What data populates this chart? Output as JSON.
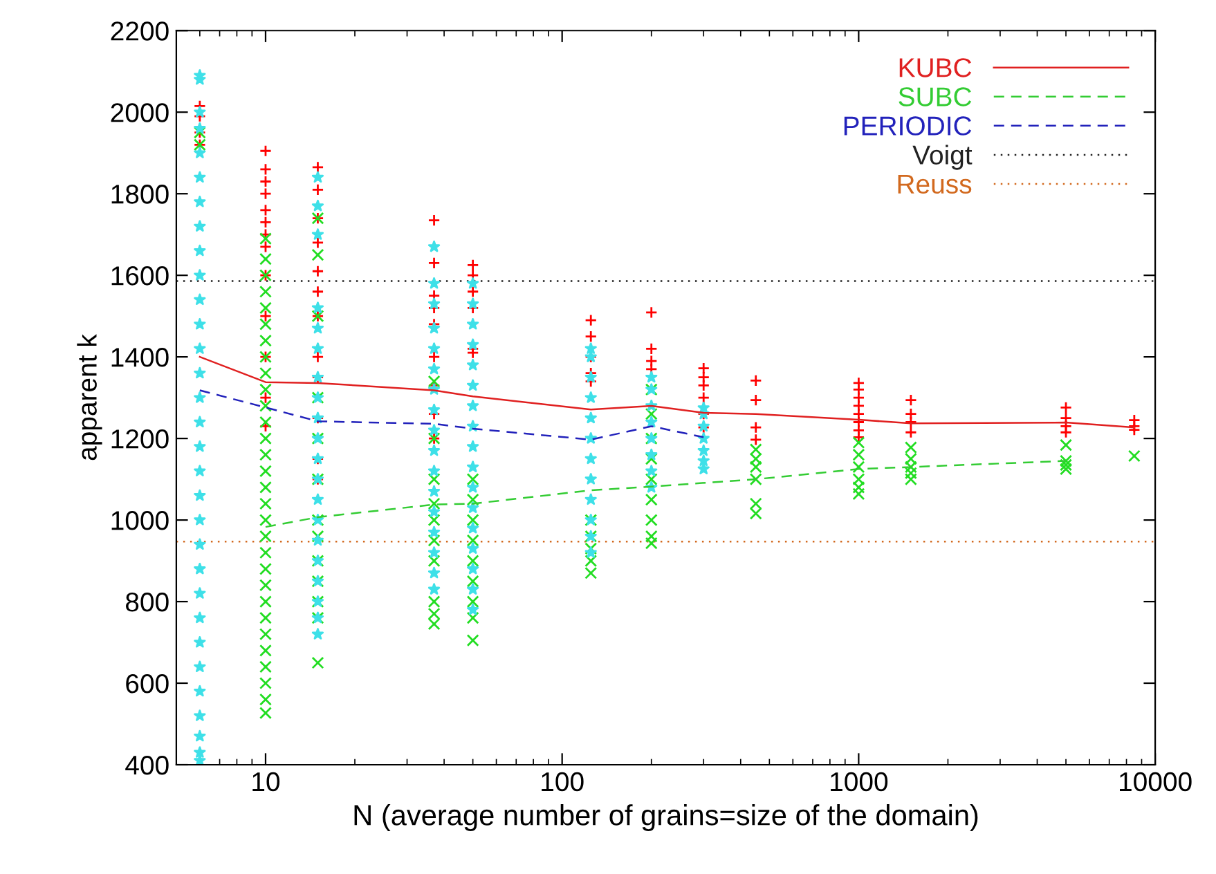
{
  "chart_data": {
    "type": "scatter",
    "xlabel": "N (average number of grains=size of the domain)",
    "ylabel": "apparent k",
    "log": "x",
    "xlim": [
      5,
      10000
    ],
    "xticks": [
      10,
      100,
      1000,
      10000
    ],
    "ylim": [
      400,
      2200
    ],
    "yticks": [
      400,
      600,
      800,
      1000,
      1200,
      1400,
      1600,
      1800,
      2000,
      2200
    ],
    "grid": false,
    "legend": "top right",
    "series": [
      {
        "color": "#ff0000",
        "marker": "cross",
        "x": [
          6,
          6,
          6,
          6,
          10,
          10,
          10,
          10,
          10,
          10,
          10,
          10,
          10,
          10,
          10,
          10,
          10,
          15,
          15,
          15,
          15,
          15,
          15,
          15,
          15,
          15,
          15,
          15,
          15,
          37,
          37,
          37,
          37,
          37,
          37,
          37,
          37,
          37,
          50,
          50,
          50,
          50,
          50,
          50,
          125,
          125,
          125,
          125,
          125,
          200,
          200,
          200,
          200,
          300,
          300,
          300,
          300,
          300,
          300,
          450,
          450,
          450,
          450,
          1000,
          1000,
          1000,
          1000,
          1000,
          1000,
          1000,
          1000,
          1500,
          1500,
          1500,
          1500,
          5000,
          5000,
          5000,
          5000,
          8500,
          8500,
          8500
        ],
        "values": [
          1920,
          1950,
          1990,
          2015,
          1230,
          1300,
          1400,
          1500,
          1600,
          1670,
          1700,
          1730,
          1760,
          1800,
          1830,
          1860,
          1905,
          1100,
          1150,
          1250,
          1350,
          1400,
          1500,
          1560,
          1610,
          1680,
          1740,
          1810,
          1865,
          1200,
          1260,
          1330,
          1400,
          1480,
          1520,
          1550,
          1630,
          1735,
          1410,
          1420,
          1520,
          1560,
          1600,
          1625,
          1340,
          1360,
          1400,
          1450,
          1490,
          1370,
          1390,
          1420,
          1509,
          1227,
          1260,
          1300,
          1330,
          1350,
          1372,
          1197,
          1227,
          1294,
          1342,
          1203,
          1220,
          1240,
          1260,
          1280,
          1300,
          1320,
          1336,
          1215,
          1240,
          1260,
          1294,
          1215,
          1230,
          1250,
          1276,
          1221,
          1230,
          1245
        ]
      },
      {
        "color": "#22dd22",
        "marker": "x",
        "x": [
          6,
          6,
          10,
          10,
          10,
          10,
          10,
          10,
          10,
          10,
          10,
          10,
          10,
          10,
          10,
          10,
          10,
          10,
          10,
          10,
          10,
          10,
          10,
          10,
          10,
          10,
          10,
          10,
          10,
          10,
          10,
          10,
          15,
          15,
          15,
          15,
          15,
          15,
          15,
          15,
          15,
          15,
          15,
          15,
          15,
          37,
          37,
          37,
          37,
          37,
          37,
          37,
          37,
          37,
          37,
          50,
          50,
          50,
          50,
          50,
          50,
          50,
          50,
          50,
          125,
          125,
          125,
          125,
          125,
          200,
          200,
          200,
          200,
          200,
          200,
          200,
          200,
          200,
          450,
          450,
          450,
          450,
          450,
          450,
          1000,
          1000,
          1000,
          1000,
          1000,
          1000,
          1500,
          1500,
          1500,
          1500,
          1500,
          5000,
          5000,
          5000,
          5000,
          8500
        ],
        "values": [
          1920,
          1950,
          527,
          560,
          600,
          640,
          680,
          720,
          760,
          800,
          840,
          880,
          920,
          960,
          1000,
          1040,
          1080,
          1120,
          1160,
          1200,
          1240,
          1280,
          1320,
          1360,
          1400,
          1440,
          1480,
          1520,
          1560,
          1600,
          1640,
          1690,
          650,
          760,
          800,
          850,
          900,
          960,
          1000,
          1100,
          1200,
          1300,
          1500,
          1650,
          1740,
          745,
          770,
          800,
          900,
          950,
          1000,
          1040,
          1100,
          1200,
          1340,
          705,
          760,
          800,
          850,
          900,
          950,
          1000,
          1050,
          1100,
          870,
          900,
          930,
          960,
          1000,
          943,
          960,
          1000,
          1050,
          1100,
          1150,
          1200,
          1260,
          1320,
          1016,
          1040,
          1100,
          1130,
          1150,
          1173,
          1064,
          1080,
          1100,
          1130,
          1160,
          1190,
          1100,
          1115,
          1130,
          1150,
          1178,
          1125,
          1135,
          1145,
          1184,
          1157
        ]
      },
      {
        "color": "#3ee0e8",
        "marker": "star",
        "x": [
          6,
          6,
          6,
          6,
          6,
          6,
          6,
          6,
          6,
          6,
          6,
          6,
          6,
          6,
          6,
          6,
          6,
          6,
          6,
          6,
          6,
          6,
          6,
          6,
          6,
          6,
          6,
          6,
          6,
          6,
          6,
          15,
          15,
          15,
          15,
          15,
          15,
          15,
          15,
          15,
          15,
          15,
          15,
          15,
          15,
          15,
          15,
          15,
          15,
          15,
          15,
          37,
          37,
          37,
          37,
          37,
          37,
          37,
          37,
          37,
          37,
          37,
          37,
          37,
          37,
          37,
          37,
          37,
          50,
          50,
          50,
          50,
          50,
          50,
          50,
          50,
          50,
          50,
          50,
          50,
          50,
          50,
          50,
          50,
          50,
          125,
          125,
          125,
          125,
          125,
          125,
          125,
          125,
          125,
          125,
          125,
          125,
          200,
          200,
          200,
          200,
          200,
          200,
          200,
          200,
          300,
          300,
          300,
          300,
          300,
          300,
          300
        ],
        "values": [
          410,
          430,
          470,
          520,
          580,
          640,
          700,
          760,
          820,
          880,
          940,
          1000,
          1060,
          1120,
          1180,
          1240,
          1300,
          1360,
          1420,
          1480,
          1540,
          1600,
          1660,
          1720,
          1780,
          1840,
          1900,
          1960,
          2000,
          2080,
          2090,
          720,
          760,
          800,
          850,
          900,
          950,
          1000,
          1050,
          1100,
          1150,
          1200,
          1250,
          1300,
          1350,
          1420,
          1470,
          1520,
          1700,
          1770,
          1840,
          830,
          870,
          920,
          970,
          1020,
          1070,
          1120,
          1170,
          1220,
          1270,
          1320,
          1370,
          1420,
          1470,
          1530,
          1580,
          1670,
          780,
          830,
          880,
          930,
          980,
          1030,
          1080,
          1130,
          1180,
          1230,
          1280,
          1330,
          1380,
          1430,
          1480,
          1530,
          1580,
          920,
          960,
          1000,
          1050,
          1100,
          1150,
          1200,
          1250,
          1300,
          1350,
          1400,
          1420,
          1080,
          1120,
          1160,
          1200,
          1240,
          1280,
          1320,
          1350,
          1125,
          1145,
          1170,
          1200,
          1230,
          1260,
          1275
        ]
      },
      {
        "type": "line",
        "name": "KUBC",
        "color": "#e02020",
        "line_style": "solid",
        "x": [
          6,
          10,
          15,
          37,
          50,
          125,
          200,
          300,
          450,
          1000,
          1500,
          5000,
          8500
        ],
        "values": [
          1400,
          1338,
          1336,
          1318,
          1303,
          1271,
          1280,
          1263,
          1260,
          1246,
          1237,
          1239,
          1227
        ]
      },
      {
        "type": "line",
        "name": "SUBC",
        "color": "#33cc33",
        "line_style": "dashed",
        "x": [
          10,
          15,
          37,
          50,
          125,
          200,
          450,
          1000,
          1500,
          5000
        ],
        "values": [
          983,
          1007,
          1038,
          1040,
          1073,
          1082,
          1100,
          1125,
          1130,
          1145
        ]
      },
      {
        "type": "line",
        "name": "PERIODIC",
        "color": "#2222bb",
        "line_style": "dashed",
        "x": [
          6,
          10,
          15,
          37,
          50,
          125,
          200,
          300
        ],
        "values": [
          1318,
          1276,
          1242,
          1236,
          1224,
          1197,
          1230,
          1203
        ]
      }
    ],
    "ref_lines": [
      {
        "axis": "y",
        "value": 1586,
        "label": "Voigt",
        "color": "#222222",
        "line_style": "dotted"
      },
      {
        "axis": "y",
        "value": 947,
        "label": "Reuss",
        "color": "#d2691e",
        "line_style": "dotted"
      }
    ]
  }
}
